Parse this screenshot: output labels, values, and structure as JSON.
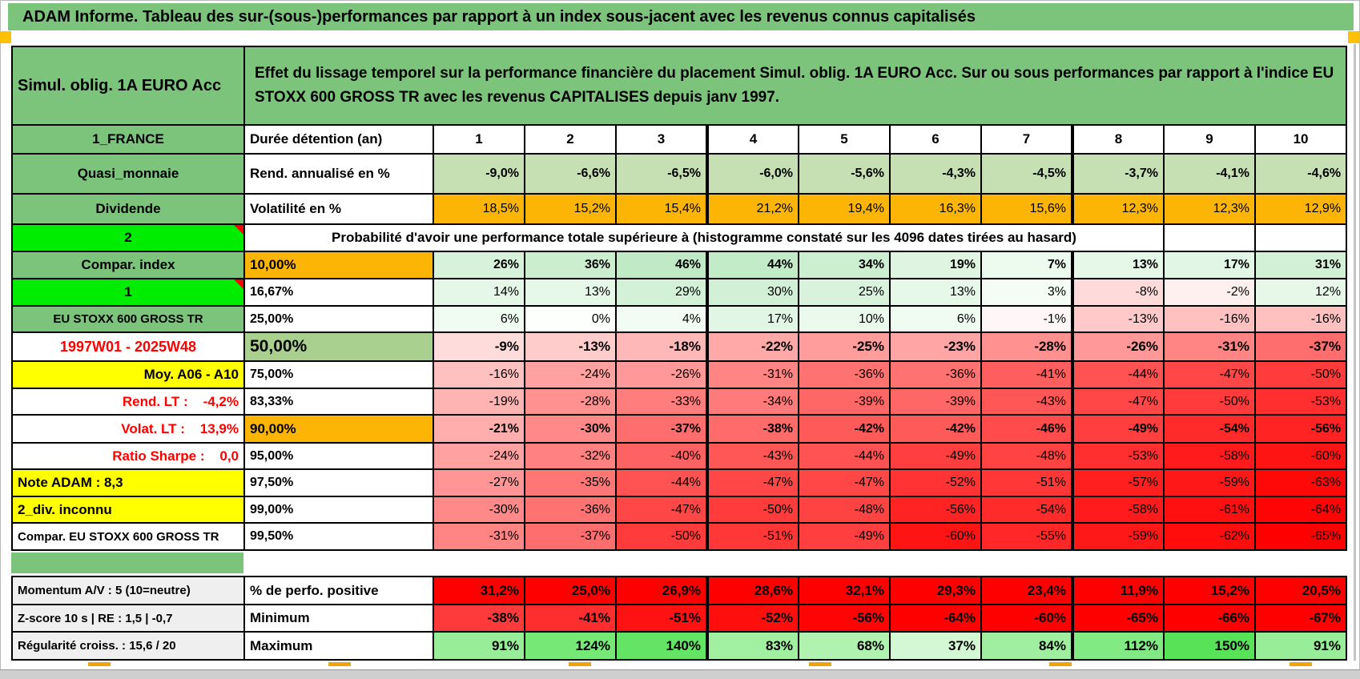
{
  "banner": {
    "title": "ADAM Informe. Tableau des sur-(sous-)performances par rapport à un index sous-jacent avec les revenus connus capitalisés"
  },
  "header": {
    "product": "Simul. oblig. 1A EURO Acc",
    "description": "Effet du lissage temporel sur la performance financière du placement Simul. oblig. 1A EURO Acc. Sur ou sous performances par rapport à l'indice EU STOXX 600 GROSS TR avec les revenus CAPITALISES depuis janv 1997."
  },
  "colors": {
    "band_green": "#7CC47C",
    "bright_green": "#00EC00",
    "orange": "#FCB505",
    "yellow": "#FFFF00",
    "sage": "#C6E0B4",
    "mid_green": "#A9D08E",
    "pure_red": "#FF0000",
    "gray_label": "#EFEFEF",
    "marker_orange": "#FFC000"
  },
  "table": {
    "durations_label": "Durée détention (an)",
    "main": [
      {
        "left": {
          "t": "Simul. oblig. 1A EURO Acc",
          "bg": "#7CC47C",
          "align": "left",
          "fs": 20
        },
        "merged": {
          "t": "Effet du lissage temporel sur la performance financière du placement Simul. oblig. 1A EURO Acc. Sur ou sous performances par rapport à l'indice EU STOXX 600 GROSS TR avec les revenus CAPITALISES depuis janv 1997.",
          "span": 11,
          "trail": 0,
          "fs": 19,
          "align": "left",
          "bg": "#7CC47C",
          "cls": "desc"
        }
      },
      {
        "left": {
          "t": "1_FRANCE",
          "bg": "#7CC47C",
          "fs": 17
        },
        "mid": {
          "t": "Durée détention (an)",
          "bg": "#FFFFFF",
          "align": "left",
          "bold": true,
          "fs": 17
        },
        "cellsBold": true,
        "cellsAlign": "center",
        "cellsFs": 17,
        "cells": [
          [
            "1",
            "#FFFFFF"
          ],
          [
            "2",
            "#FFFFFF"
          ],
          [
            "3",
            "#FFFFFF"
          ],
          [
            "4",
            "#FFFFFF"
          ],
          [
            "5",
            "#FFFFFF"
          ],
          [
            "6",
            "#FFFFFF"
          ],
          [
            "7",
            "#FFFFFF"
          ],
          [
            "8",
            "#FFFFFF"
          ],
          [
            "9",
            "#FFFFFF"
          ],
          [
            "10",
            "#FFFFFF"
          ]
        ]
      },
      {
        "left": {
          "t": "Quasi_monnaie",
          "bg": "#7CC47C",
          "fs": 17
        },
        "mid": {
          "t": "Rend. annualisé en %",
          "bg": "#FFFFFF",
          "align": "left",
          "bold": true,
          "fs": 17
        },
        "cellsBold": true,
        "cellsFs": 16,
        "cells": [
          [
            "-9,0%",
            "#C6E0B4"
          ],
          [
            "-6,6%",
            "#C6E0B4"
          ],
          [
            "-6,5%",
            "#C6E0B4"
          ],
          [
            "-6,0%",
            "#C6E0B4"
          ],
          [
            "-5,6%",
            "#C6E0B4"
          ],
          [
            "-4,3%",
            "#C6E0B4"
          ],
          [
            "-4,5%",
            "#C6E0B4"
          ],
          [
            "-3,7%",
            "#C6E0B4"
          ],
          [
            "-4,1%",
            "#C6E0B4"
          ],
          [
            "-4,6%",
            "#C6E0B4"
          ]
        ]
      },
      {
        "left": {
          "t": "Dividende",
          "bg": "#7CC47C",
          "fs": 17
        },
        "mid": {
          "t": "Volatilité en %",
          "bg": "#FFFFFF",
          "align": "left",
          "bold": true,
          "fs": 17
        },
        "cellsFs": 16,
        "cells": [
          [
            "18,5%",
            "#FCB505"
          ],
          [
            "15,2%",
            "#FCB505"
          ],
          [
            "15,4%",
            "#FCB505"
          ],
          [
            "21,2%",
            "#FCB505"
          ],
          [
            "19,4%",
            "#FCB505"
          ],
          [
            "16,3%",
            "#FCB505"
          ],
          [
            "15,6%",
            "#FCB505"
          ],
          [
            "12,3%",
            "#FCB505"
          ],
          [
            "12,3%",
            "#FCB505"
          ],
          [
            "12,9%",
            "#FCB505"
          ]
        ]
      },
      {
        "left": {
          "t": "2",
          "bg": "#00EC00",
          "fs": 17,
          "marker": true
        },
        "merged": {
          "t": "Probabilité d'avoir une performance totale supérieure à (histogramme constaté sur les 4096 dates tirées au hasard)",
          "span": 9,
          "trail": 2,
          "fs": 17,
          "align": "center",
          "bg": "#FFFFFF"
        }
      },
      {
        "left": {
          "t": "Compar. index",
          "bg": "#7CC47C",
          "fs": 17
        },
        "mid": {
          "t": "10,00%",
          "bg": "#FCB505",
          "bold": true,
          "fs": 17
        },
        "cellsBold": true,
        "cellsFs": 16,
        "cells": [
          [
            "26%",
            "#D7F2DA"
          ],
          [
            "36%",
            "#CBEECF"
          ],
          [
            "46%",
            "#BFEAC5"
          ],
          [
            "44%",
            "#C2EBC7"
          ],
          [
            "34%",
            "#CDEFD1"
          ],
          [
            "19%",
            "#DFF5E1"
          ],
          [
            "7%",
            "#EDFAEE"
          ],
          [
            "13%",
            "#E6F8E8"
          ],
          [
            "17%",
            "#E1F6E4"
          ],
          [
            "31%",
            "#D1F0D5"
          ]
        ]
      },
      {
        "left": {
          "t": "1",
          "bg": "#00EC00",
          "fs": 17,
          "marker": true
        },
        "mid": {
          "t": "16,67%",
          "bg": "#FFFFFF",
          "bold": true,
          "fs": 16
        },
        "cellsFs": 16,
        "cells": [
          [
            "14%",
            "#E5F7E7"
          ],
          [
            "13%",
            "#E6F8E8"
          ],
          [
            "29%",
            "#D3F1D7"
          ],
          [
            "30%",
            "#D2F0D6"
          ],
          [
            "25%",
            "#D8F2DB"
          ],
          [
            "13%",
            "#E6F8E8"
          ],
          [
            "3%",
            "#F4FCF5"
          ],
          [
            "-8%",
            "#FFDADA"
          ],
          [
            "-2%",
            "#FFF0F0"
          ],
          [
            "12%",
            "#E7F8E9"
          ]
        ]
      },
      {
        "left": {
          "t": "EU STOXX 600 GROSS TR",
          "bg": "#7CC47C",
          "fs": 15
        },
        "mid": {
          "t": "25,00%",
          "bg": "#FFFFFF",
          "bold": true,
          "fs": 16
        },
        "cellsFs": 16,
        "cells": [
          [
            "6%",
            "#F0FBF1"
          ],
          [
            "0%",
            "#FCFFFC"
          ],
          [
            "4%",
            "#F3FCF4"
          ],
          [
            "17%",
            "#E1F6E4"
          ],
          [
            "10%",
            "#EBF9EC"
          ],
          [
            "6%",
            "#F0FBF1"
          ],
          [
            "-1%",
            "#FFF7F7"
          ],
          [
            "-13%",
            "#FFC9C9"
          ],
          [
            "-16%",
            "#FFC0C0"
          ],
          [
            "-16%",
            "#FFC0C0"
          ]
        ]
      },
      {
        "left": {
          "t": "1997W01 - 2025W48",
          "bg": "#FFFFFF",
          "color": "#FF0000",
          "fs": 18
        },
        "mid": {
          "t": "50,00%",
          "bg": "#A9D08E",
          "bold": true,
          "fs": 21
        },
        "cellsBold": true,
        "cellsFs": 17,
        "cells": [
          [
            "-9%",
            "#FFDCDC"
          ],
          [
            "-13%",
            "#FFCCCC"
          ],
          [
            "-18%",
            "#FFB8B8"
          ],
          [
            "-22%",
            "#FFA9A9"
          ],
          [
            "-25%",
            "#FF9D9D"
          ],
          [
            "-23%",
            "#FFA5A5"
          ],
          [
            "-28%",
            "#FF9191"
          ],
          [
            "-26%",
            "#FF9999"
          ],
          [
            "-31%",
            "#FF8585"
          ],
          [
            "-37%",
            "#FF6E6E"
          ]
        ]
      },
      {
        "left": {
          "t": "Moy. A06 - A10",
          "bg": "#FFFF00",
          "align": "right",
          "fs": 17
        },
        "mid": {
          "t": "75,00%",
          "bg": "#FFFFFF",
          "bold": true,
          "fs": 16
        },
        "cellsFs": 16,
        "cells": [
          [
            "-16%",
            "#FFC0C0"
          ],
          [
            "-24%",
            "#FFA1A1"
          ],
          [
            "-26%",
            "#FF9999"
          ],
          [
            "-31%",
            "#FF8585"
          ],
          [
            "-36%",
            "#FF7272"
          ],
          [
            "-36%",
            "#FF7272"
          ],
          [
            "-41%",
            "#FF5E5E"
          ],
          [
            "-44%",
            "#FF5252"
          ],
          [
            "-47%",
            "#FF4747"
          ],
          [
            "-50%",
            "#FF3B3B"
          ]
        ]
      },
      {
        "left": {
          "t": "Rend. LT :    -4,2%",
          "bg": "#FFFFFF",
          "color": "#FF0000",
          "align": "right",
          "fs": 17
        },
        "mid": {
          "t": "83,33%",
          "bg": "#FFFFFF",
          "bold": true,
          "fs": 16
        },
        "cellsFs": 16,
        "cells": [
          [
            "-19%",
            "#FFB4B4"
          ],
          [
            "-28%",
            "#FF9191"
          ],
          [
            "-33%",
            "#FF7D7D"
          ],
          [
            "-34%",
            "#FF7A7A"
          ],
          [
            "-39%",
            "#FF6666"
          ],
          [
            "-39%",
            "#FF6666"
          ],
          [
            "-43%",
            "#FF5656"
          ],
          [
            "-47%",
            "#FF4747"
          ],
          [
            "-50%",
            "#FF3B3B"
          ],
          [
            "-53%",
            "#FF2F2F"
          ]
        ]
      },
      {
        "left": {
          "t": "Volat. LT :    13,9%",
          "bg": "#FFFFFF",
          "color": "#FF0000",
          "align": "right",
          "fs": 17
        },
        "mid": {
          "t": "90,00%",
          "bg": "#FCB505",
          "bold": true,
          "fs": 17
        },
        "cellsBold": true,
        "cellsFs": 16,
        "cells": [
          [
            "-21%",
            "#FFADAD"
          ],
          [
            "-30%",
            "#FF8989"
          ],
          [
            "-37%",
            "#FF6E6E"
          ],
          [
            "-38%",
            "#FF6A6A"
          ],
          [
            "-42%",
            "#FF5A5A"
          ],
          [
            "-42%",
            "#FF5A5A"
          ],
          [
            "-46%",
            "#FF4B4B"
          ],
          [
            "-49%",
            "#FF3F3F"
          ],
          [
            "-54%",
            "#FF2B2B"
          ],
          [
            "-56%",
            "#FF2323"
          ]
        ]
      },
      {
        "left": {
          "t": "Ratio Sharpe :    0,0",
          "bg": "#FFFFFF",
          "color": "#FF0000",
          "align": "right",
          "fs": 17
        },
        "mid": {
          "t": "95,00%",
          "bg": "#FFFFFF",
          "bold": true,
          "fs": 16
        },
        "cellsFs": 16,
        "cells": [
          [
            "-24%",
            "#FFA1A1"
          ],
          [
            "-32%",
            "#FF8181"
          ],
          [
            "-40%",
            "#FF6262"
          ],
          [
            "-43%",
            "#FF5656"
          ],
          [
            "-44%",
            "#FF5252"
          ],
          [
            "-49%",
            "#FF3F3F"
          ],
          [
            "-48%",
            "#FF4343"
          ],
          [
            "-53%",
            "#FF2F2F"
          ],
          [
            "-58%",
            "#FF1B1B"
          ],
          [
            "-60%",
            "#FF1414"
          ]
        ]
      },
      {
        "left": {
          "t": "Note ADAM : 8,3",
          "bg": "#FFFF00",
          "align": "left",
          "fs": 17
        },
        "mid": {
          "t": "97,50%",
          "bg": "#FFFFFF",
          "bold": true,
          "fs": 16
        },
        "cellsFs": 16,
        "cells": [
          [
            "-27%",
            "#FF9595"
          ],
          [
            "-35%",
            "#FF7676"
          ],
          [
            "-44%",
            "#FF5252"
          ],
          [
            "-47%",
            "#FF4747"
          ],
          [
            "-47%",
            "#FF4747"
          ],
          [
            "-52%",
            "#FF3333"
          ],
          [
            "-51%",
            "#FF3737"
          ],
          [
            "-57%",
            "#FF1F1F"
          ],
          [
            "-59%",
            "#FF1818"
          ],
          [
            "-63%",
            "#FF0808"
          ]
        ]
      },
      {
        "left": {
          "t": "2_div. inconnu",
          "bg": "#FFFF00",
          "align": "left",
          "fs": 17
        },
        "mid": {
          "t": "99,00%",
          "bg": "#FFFFFF",
          "bold": true,
          "fs": 16
        },
        "cellsFs": 16,
        "cells": [
          [
            "-30%",
            "#FF8989"
          ],
          [
            "-36%",
            "#FF7272"
          ],
          [
            "-47%",
            "#FF4747"
          ],
          [
            "-50%",
            "#FF3B3B"
          ],
          [
            "-48%",
            "#FF4343"
          ],
          [
            "-56%",
            "#FF2323"
          ],
          [
            "-54%",
            "#FF2B2B"
          ],
          [
            "-58%",
            "#FF1B1B"
          ],
          [
            "-61%",
            "#FF1010"
          ],
          [
            "-64%",
            "#FF0404"
          ]
        ]
      },
      {
        "left": {
          "t": "Compar. EU STOXX 600 GROSS TR",
          "bg": "#FFFFFF",
          "align": "left",
          "fs": 15
        },
        "mid": {
          "t": "99,50%",
          "bg": "#FFFFFF",
          "bold": true,
          "fs": 16
        },
        "cellsFs": 16,
        "cells": [
          [
            "-31%",
            "#FF8585"
          ],
          [
            "-37%",
            "#FF6E6E"
          ],
          [
            "-50%",
            "#FF3B3B"
          ],
          [
            "-51%",
            "#FF3737"
          ],
          [
            "-49%",
            "#FF3F3F"
          ],
          [
            "-60%",
            "#FF1414"
          ],
          [
            "-55%",
            "#FF2727"
          ],
          [
            "-59%",
            "#FF1818"
          ],
          [
            "-62%",
            "#FF0C0C"
          ],
          [
            "-65%",
            "#FF0000"
          ]
        ]
      }
    ],
    "bottom": [
      {
        "left": {
          "t": "Momentum A/V : 5 (10=neutre)",
          "bg": "#EFEFEF",
          "align": "left",
          "fs": 15
        },
        "mid": {
          "t": "% de perfo. positive",
          "bg": "#FFFFFF",
          "align": "left",
          "bold": true,
          "fs": 17
        },
        "cellsBold": true,
        "cellsFs": 17,
        "cells": [
          [
            "31,2%",
            "#FF0000"
          ],
          [
            "25,0%",
            "#FF0000"
          ],
          [
            "26,9%",
            "#FF0000"
          ],
          [
            "28,6%",
            "#FF0000"
          ],
          [
            "32,1%",
            "#FF0000"
          ],
          [
            "29,3%",
            "#FF0000"
          ],
          [
            "23,4%",
            "#FF0000"
          ],
          [
            "11,9%",
            "#FF0000"
          ],
          [
            "15,2%",
            "#FF0000"
          ],
          [
            "20,5%",
            "#FF0000"
          ]
        ]
      },
      {
        "left": {
          "t": "Z-score 10 s | RE : 1,5 | -0,7",
          "bg": "#EFEFEF",
          "align": "left",
          "fs": 15
        },
        "mid": {
          "t": "Minimum",
          "bg": "#FFFFFF",
          "align": "left",
          "bold": true,
          "fs": 17
        },
        "cellsBold": true,
        "cellsFs": 17,
        "cells": [
          [
            "-38%",
            "#FF3A3A"
          ],
          [
            "-41%",
            "#FF2E2E"
          ],
          [
            "-51%",
            "#FF1212"
          ],
          [
            "-52%",
            "#FF0E0E"
          ],
          [
            "-56%",
            "#FF0404"
          ],
          [
            "-64%",
            "#FF0000"
          ],
          [
            "-60%",
            "#FF0000"
          ],
          [
            "-65%",
            "#FF0000"
          ],
          [
            "-66%",
            "#FF0000"
          ],
          [
            "-67%",
            "#FF0000"
          ]
        ]
      },
      {
        "left": {
          "t": "Régularité croiss. : 15,6 / 20",
          "bg": "#EFEFEF",
          "align": "left",
          "fs": 15
        },
        "mid": {
          "t": "Maximum",
          "bg": "#FFFFFF",
          "align": "left",
          "bold": true,
          "fs": 17
        },
        "cellsBold": true,
        "cellsFs": 17,
        "cells": [
          [
            "91%",
            "#98EE98"
          ],
          [
            "124%",
            "#76E876"
          ],
          [
            "140%",
            "#64E464"
          ],
          [
            "83%",
            "#A1F0A1"
          ],
          [
            "68%",
            "#B0F2B0"
          ],
          [
            "37%",
            "#D4F8D4"
          ],
          [
            "84%",
            "#A0EFA0"
          ],
          [
            "112%",
            "#82EA82"
          ],
          [
            "150%",
            "#57E257"
          ],
          [
            "91%",
            "#98EE98"
          ]
        ]
      }
    ]
  }
}
